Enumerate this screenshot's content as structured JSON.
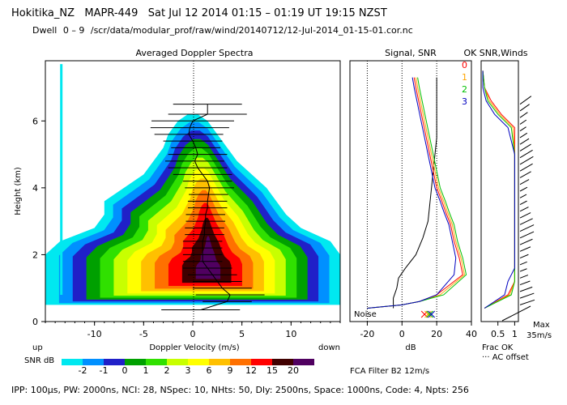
{
  "header": {
    "site": "Hokitika_NZ",
    "radar": "MAPR-449",
    "datetime": "Sat Jul 12 2014 01:15 – 01:19 UT 19:15 NZST",
    "dwell_label": "Dwell",
    "dwell_range": "0 – 9",
    "path": "/scr/data/modular_prof/raw/wind/20140712/12-Jul-2014_01-15-01.cor.nc"
  },
  "chart_data": [
    {
      "type": "heatmap",
      "title": "Averaged Doppler Spectra",
      "xlabel": "Doppler Velocity (m/s)",
      "ylabel": "Height (km)",
      "xlim": [
        -15,
        15
      ],
      "ylim": [
        0,
        7.8
      ],
      "xticks": [
        -10,
        -5,
        0,
        5,
        10
      ],
      "yticks": [
        0,
        2,
        4,
        6
      ],
      "x_end_labels": {
        "left": "up",
        "right": "down"
      },
      "colorbar": {
        "label": "SNR dB",
        "levels": [
          -2,
          -1,
          0,
          1,
          2,
          3,
          6,
          9,
          12,
          15,
          20
        ],
        "colors": [
          "#00e8f0",
          "#0090ff",
          "#2020c8",
          "#00a000",
          "#30e000",
          "#c8ff00",
          "#ffff00",
          "#ffc000",
          "#ff7000",
          "#ff0000",
          "#400000",
          "#500060"
        ]
      },
      "spectrum_envelope": {
        "heights_km": [
          0.5,
          0.9,
          1.2,
          1.6,
          2.0,
          2.4,
          2.8,
          3.2,
          3.6,
          4.0,
          4.4,
          4.8,
          5.2,
          5.6,
          6.0,
          6.2
        ],
        "left_ms": [
          -15,
          -15,
          -15,
          -15,
          -15,
          -13.5,
          -10,
          -9,
          -9,
          -7,
          -5,
          -4,
          -3,
          -2.5,
          -1.5,
          -0.5
        ],
        "right_ms": [
          15,
          15,
          15,
          15,
          15,
          14,
          11,
          9.5,
          8.5,
          7.5,
          6,
          4.5,
          3.5,
          2.5,
          1.5,
          0.5
        ]
      },
      "velocity_estimates": {
        "heights_km": [
          0.35,
          0.6,
          0.8,
          1.0,
          1.2,
          1.4,
          1.6,
          1.8,
          2.0,
          2.2,
          2.4,
          2.6,
          2.8,
          3.0,
          3.2,
          3.4,
          3.6,
          3.8,
          4.0,
          4.2,
          4.4,
          4.6,
          4.8,
          5.0,
          5.2,
          5.4,
          5.6,
          5.8,
          6.0,
          6.2,
          6.5
        ],
        "center_ms": [
          0.8,
          3.5,
          3.8,
          3.0,
          2.5,
          2.0,
          1.5,
          1.0,
          1.0,
          1.0,
          1.0,
          1.2,
          1.2,
          1.3,
          1.3,
          1.5,
          1.5,
          1.6,
          1.7,
          1.5,
          1.0,
          0.5,
          0.2,
          0.5,
          0.3,
          0.0,
          -0.4,
          -0.3,
          0.0,
          1.5,
          1.5
        ],
        "halfwidth_ms": [
          4,
          2.5,
          3.5,
          3,
          2.5,
          2.5,
          2.5,
          2,
          2,
          2,
          2,
          2,
          2,
          2,
          2,
          2,
          2,
          2,
          2.5,
          2.5,
          3,
          3,
          3,
          3,
          2.5,
          3,
          3.5,
          4,
          4.2,
          4,
          3.5
        ]
      }
    },
    {
      "type": "line",
      "title": "Signal, SNR",
      "xlabel": "dB",
      "xlim": [
        -30,
        40
      ],
      "xticks": [
        -20,
        0,
        20,
        40
      ],
      "noise_label": "Noise",
      "series": [
        {
          "name": "Signal",
          "color": "#000000",
          "x": [
            -5,
            -5,
            -3,
            -2,
            2,
            8,
            12,
            15,
            16,
            17,
            18,
            19,
            20,
            20,
            20,
            20,
            20
          ],
          "y": [
            0.4,
            0.7,
            1.0,
            1.3,
            1.6,
            2.0,
            2.5,
            3.0,
            3.5,
            4.0,
            4.5,
            5.0,
            5.5,
            6.0,
            6.5,
            7.0,
            7.3
          ]
        },
        {
          "name": "SNR 0",
          "color": "#ff0000",
          "x": [
            -20,
            0,
            10,
            20,
            35,
            33,
            30,
            28,
            25,
            23,
            20,
            18,
            16,
            14,
            12,
            10,
            8,
            7
          ],
          "y": [
            0.4,
            0.5,
            0.6,
            0.8,
            1.4,
            1.9,
            2.4,
            2.9,
            3.3,
            3.6,
            4.0,
            4.5,
            5.0,
            5.5,
            6.0,
            6.5,
            7.0,
            7.3
          ]
        },
        {
          "name": "SNR 1",
          "color": "#ffa500",
          "x": [
            -20,
            0,
            10,
            22,
            36,
            34,
            31,
            29,
            26,
            24,
            21,
            19,
            17,
            15,
            13,
            11,
            9,
            8
          ],
          "y": [
            0.4,
            0.5,
            0.6,
            0.8,
            1.4,
            1.9,
            2.4,
            2.9,
            3.3,
            3.6,
            4.0,
            4.5,
            5.0,
            5.5,
            6.0,
            6.5,
            7.0,
            7.3
          ]
        },
        {
          "name": "SNR 2",
          "color": "#00c000",
          "x": [
            -20,
            0,
            10,
            24,
            37,
            35,
            32,
            30,
            27,
            25,
            22,
            20,
            18,
            16,
            14,
            12,
            10,
            9
          ],
          "y": [
            0.4,
            0.5,
            0.6,
            0.8,
            1.4,
            1.9,
            2.4,
            2.9,
            3.3,
            3.6,
            4.0,
            4.5,
            5.0,
            5.5,
            6.0,
            6.5,
            7.0,
            7.3
          ]
        },
        {
          "name": "SNR 3",
          "color": "#0000c0",
          "x": [
            -20,
            0,
            10,
            20,
            30,
            31,
            29,
            27,
            24,
            22,
            19,
            17,
            15,
            13,
            11,
            9,
            7,
            6
          ],
          "y": [
            0.4,
            0.5,
            0.6,
            0.8,
            1.4,
            1.9,
            2.4,
            2.9,
            3.3,
            3.6,
            4.0,
            4.5,
            5.0,
            5.5,
            6.0,
            6.5,
            7.0,
            7.3
          ]
        }
      ],
      "noise_markers_x_db": [
        13,
        15,
        16,
        17
      ]
    },
    {
      "type": "line",
      "title": "OK SNR,Winds",
      "xlabel": "Frac OK",
      "xticks": [
        0.5,
        1
      ],
      "legend_index": [
        "0",
        "1",
        "2",
        "3"
      ],
      "legend_colors": [
        "#ff0000",
        "#ffa500",
        "#00c000",
        "#0000c0"
      ],
      "ac_offset_label": "AC offset",
      "max_wind_label": "Max",
      "max_wind_value": "35m/s",
      "filter_label": "FCA Filter B2 12m/s"
    }
  ],
  "footer": "IPP: 100μs,  PW: 2000ns,  NCI: 28,  NSpec: 10,  NHts: 50,  Dly: 2500ns,  Space: 1000ns,  Code: 4,  Npts: 256"
}
